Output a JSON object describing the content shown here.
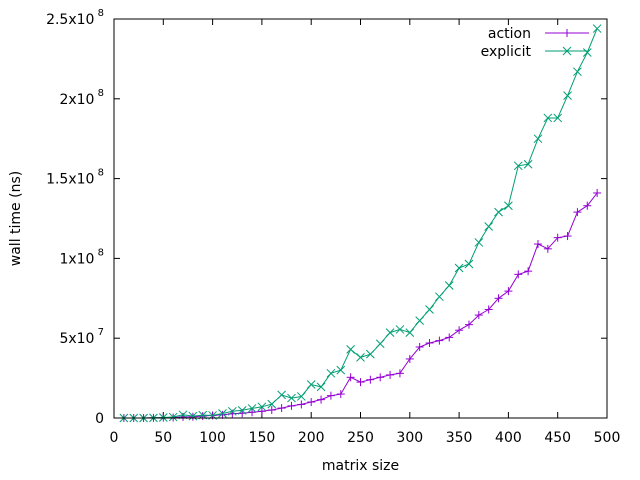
{
  "chart_data": {
    "type": "line",
    "xlabel": "matrix size",
    "ylabel": "wall time (ns)",
    "xlim": [
      0,
      500
    ],
    "ylim": [
      0,
      250000000
    ],
    "grid": false,
    "legend_placement": "top-right",
    "x_ticks": [
      {
        "value": 0,
        "label": "0"
      },
      {
        "value": 50,
        "label": "50"
      },
      {
        "value": 100,
        "label": "100"
      },
      {
        "value": 150,
        "label": "150"
      },
      {
        "value": 200,
        "label": "200"
      },
      {
        "value": 250,
        "label": "250"
      },
      {
        "value": 300,
        "label": "300"
      },
      {
        "value": 350,
        "label": "350"
      },
      {
        "value": 400,
        "label": "400"
      },
      {
        "value": 450,
        "label": "450"
      },
      {
        "value": 500,
        "label": "500"
      }
    ],
    "y_ticks": [
      {
        "value": 0,
        "mantissa": "0",
        "exponent": ""
      },
      {
        "value": 50000000,
        "mantissa": "5x10",
        "exponent": "7"
      },
      {
        "value": 100000000,
        "mantissa": "1x10",
        "exponent": "8"
      },
      {
        "value": 150000000,
        "mantissa": "1.5x10",
        "exponent": "8"
      },
      {
        "value": 200000000,
        "mantissa": "2x10",
        "exponent": "8"
      },
      {
        "value": 250000000,
        "mantissa": "2.5x10",
        "exponent": "8"
      }
    ],
    "x": [
      10,
      20,
      30,
      40,
      50,
      60,
      70,
      80,
      90,
      100,
      110,
      120,
      130,
      140,
      150,
      160,
      170,
      180,
      190,
      200,
      210,
      220,
      230,
      240,
      250,
      260,
      270,
      280,
      290,
      300,
      310,
      320,
      330,
      340,
      350,
      360,
      370,
      380,
      390,
      400,
      410,
      420,
      430,
      440,
      450,
      460,
      470,
      480,
      490
    ],
    "series": [
      {
        "name": "action",
        "color": "#9400d3",
        "marker": "plus",
        "values": [
          0,
          0,
          0,
          100000,
          200000,
          300000,
          700000,
          800000,
          1200000,
          1600000,
          2000000,
          2700000,
          3000000,
          3600000,
          4200000,
          5000000,
          6200000,
          7600000,
          8500000,
          10000000,
          11500000,
          14000000,
          15000000,
          25500000,
          22500000,
          24000000,
          25500000,
          27000000,
          28000000,
          37000000,
          44500000,
          47000000,
          48500000,
          50500000,
          55000000,
          58500000,
          64500000,
          68000000,
          75000000,
          79500000,
          90000000,
          92000000,
          109000000,
          106000000,
          113000000,
          114000000,
          129000000,
          133000000,
          141000000
        ]
      },
      {
        "name": "explicit",
        "color": "#009e73",
        "marker": "cross",
        "values": [
          0,
          0,
          0,
          100000,
          300000,
          600000,
          2000000,
          1200000,
          1800000,
          1600000,
          2800000,
          4200000,
          4800000,
          6000000,
          7000000,
          8700000,
          14500000,
          12500000,
          13500000,
          21000000,
          19500000,
          28000000,
          30000000,
          43000000,
          38000000,
          40000000,
          46500000,
          53500000,
          55500000,
          53500000,
          61000000,
          68000000,
          76000000,
          83000000,
          94000000,
          96500000,
          110000000,
          120000000,
          129000000,
          133000000,
          158000000,
          159000000,
          175000000,
          188000000,
          188000000,
          202000000,
          217000000,
          229000000,
          244000000
        ]
      }
    ]
  }
}
